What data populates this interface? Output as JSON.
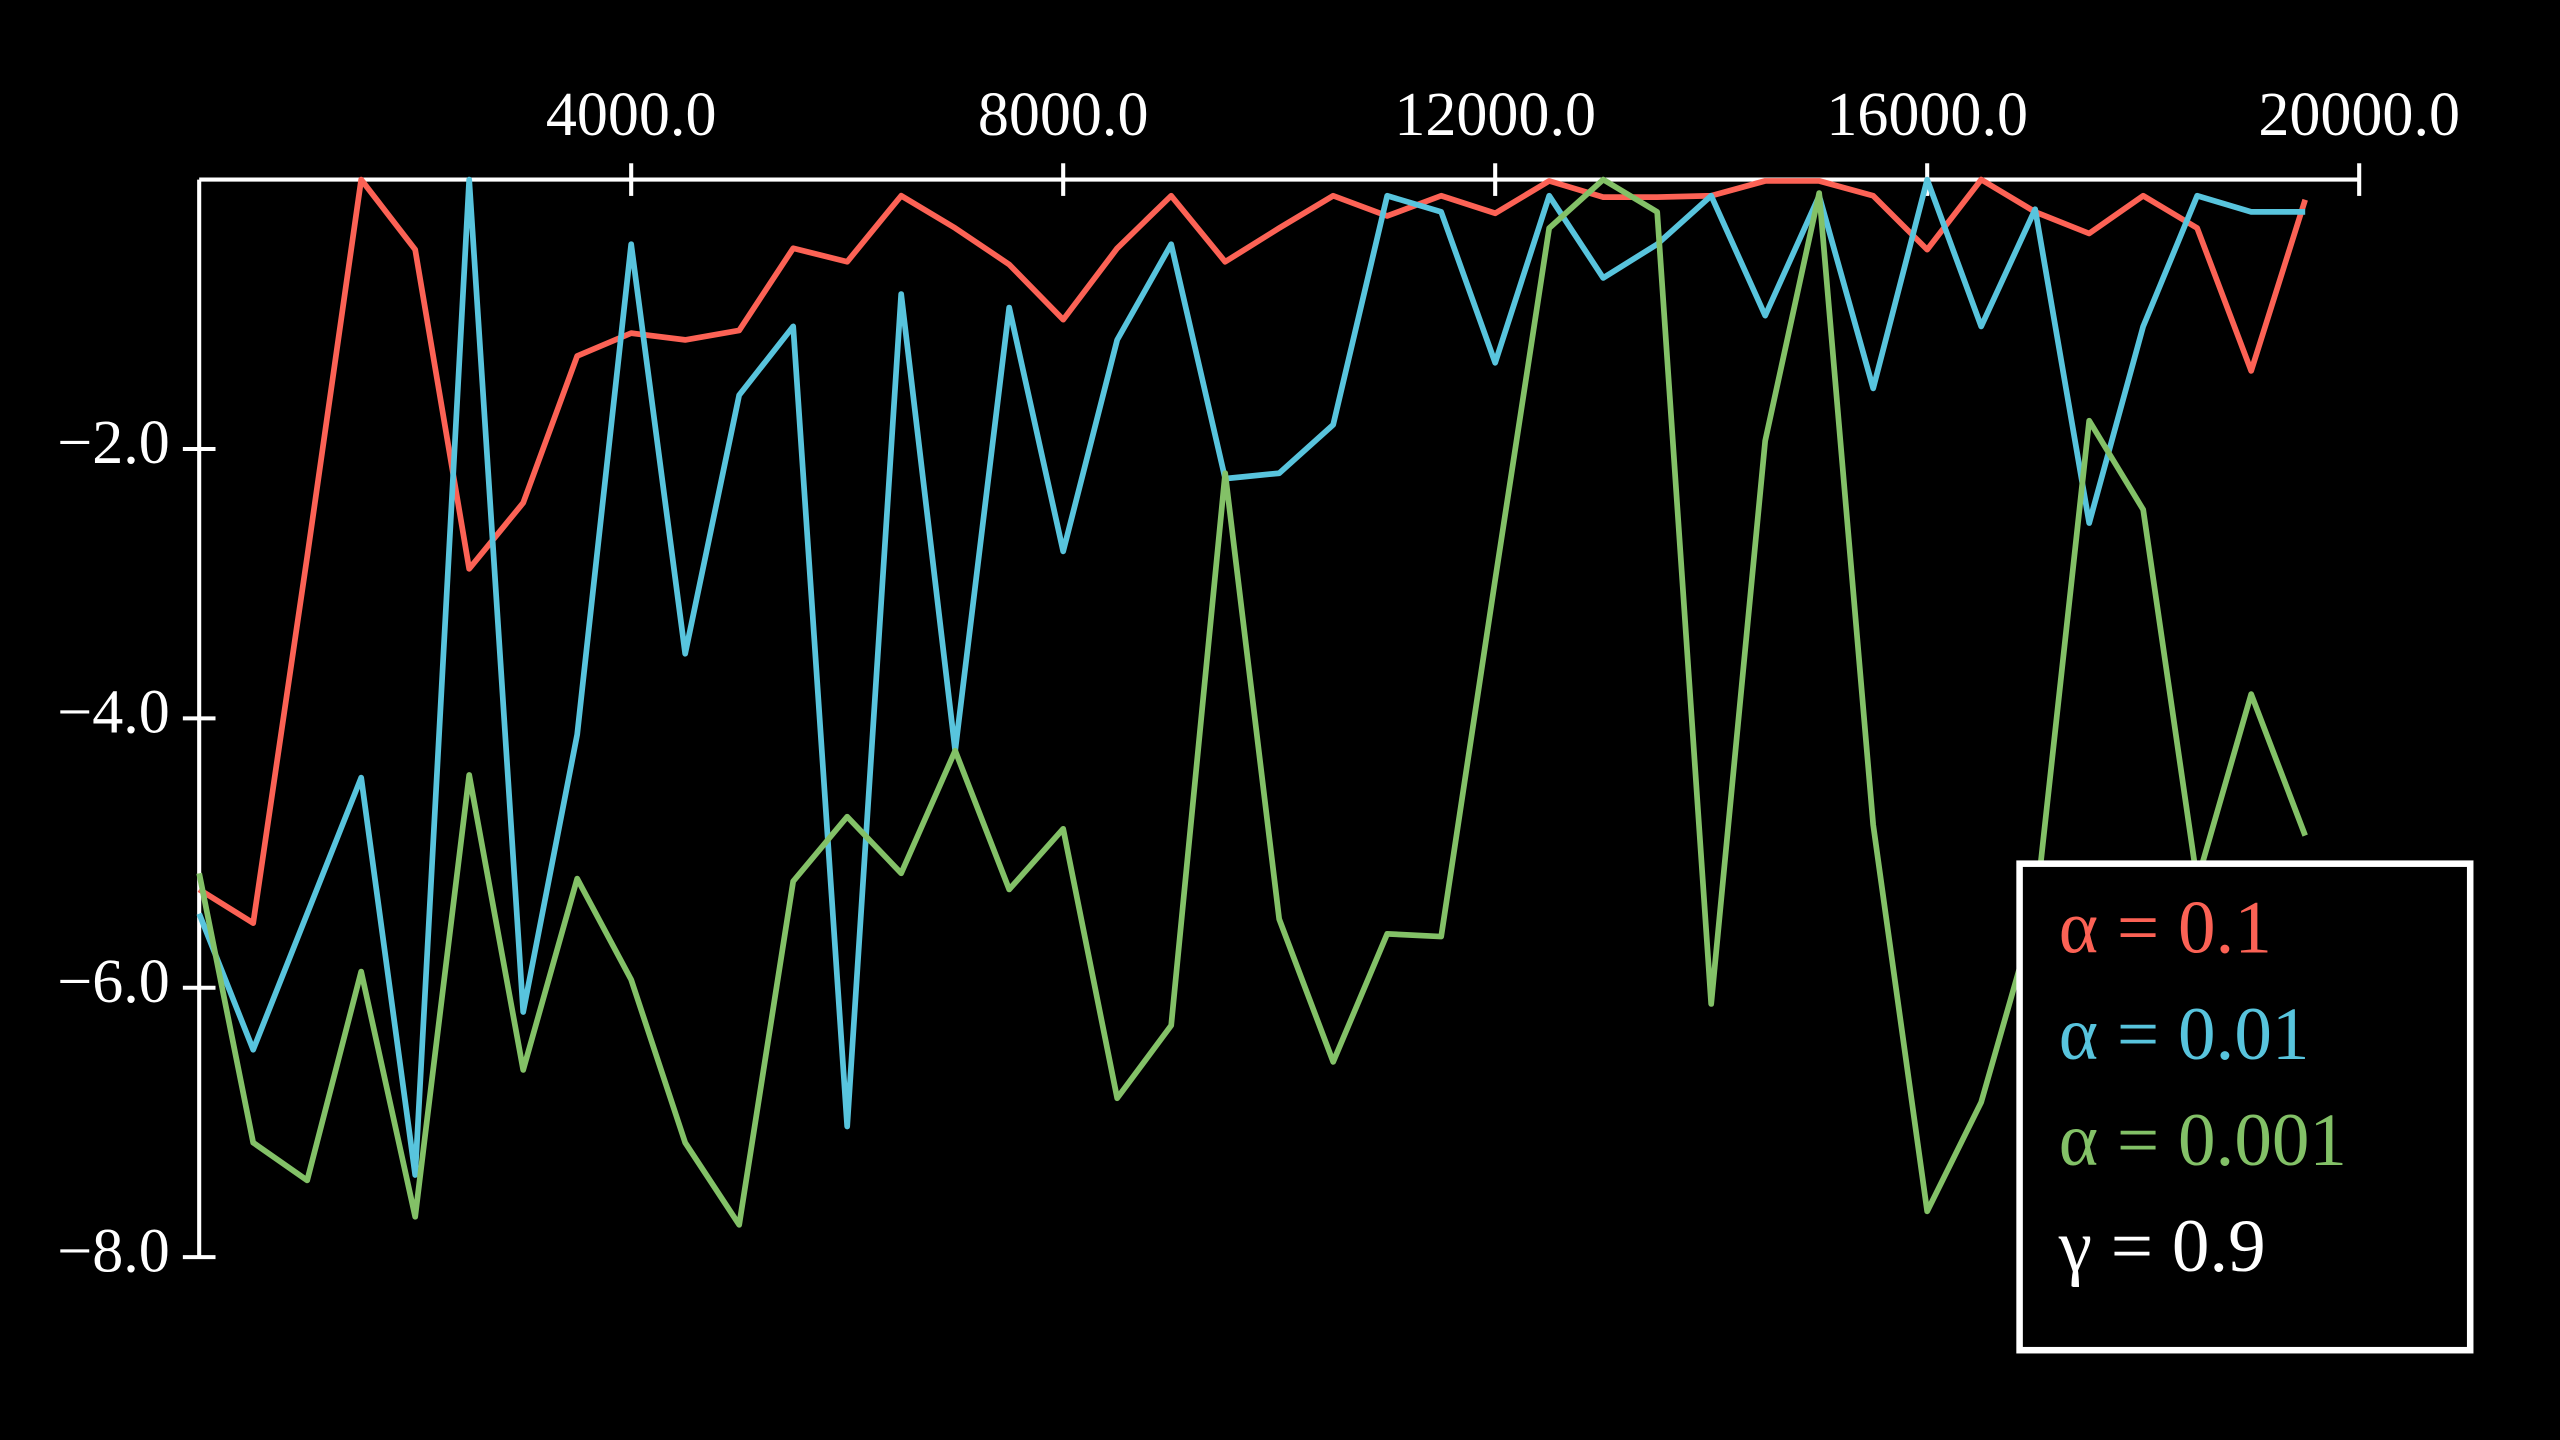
{
  "chart_data": {
    "type": "line",
    "x": [
      0,
      500,
      1000,
      1500,
      2000,
      2500,
      3000,
      3500,
      4000,
      4500,
      5000,
      5500,
      6000,
      6500,
      7000,
      7500,
      8000,
      8500,
      9000,
      9500,
      10000,
      10500,
      11000,
      11500,
      12000,
      12500,
      13000,
      13500,
      14000,
      14500,
      15000,
      15500,
      16000,
      16500,
      17000,
      17500,
      18000,
      18500,
      19000,
      19500
    ],
    "series": [
      {
        "name": "α = 0.1",
        "color": "#fc6255",
        "values": [
          -5.27,
          -5.52,
          -2.8,
          0,
          -0.52,
          -2.89,
          -2.4,
          -1.31,
          -1.14,
          -1.19,
          -1.12,
          -0.51,
          -0.61,
          -0.12,
          -0.36,
          -0.63,
          -1.04,
          -0.51,
          -0.12,
          -0.61,
          -0.36,
          -0.12,
          -0.27,
          -0.12,
          -0.25,
          -0.01,
          -0.13,
          -0.13,
          -0.12,
          -0.01,
          -0.01,
          -0.12,
          -0.52,
          0,
          -0.24,
          -0.4,
          -0.12,
          -0.36,
          -1.42,
          -0.15
        ]
      },
      {
        "name": "α = 0.01",
        "color": "#58c4dd",
        "values": [
          -5.45,
          -6.46,
          -5.45,
          -4.44,
          -7.39,
          0,
          -6.18,
          -4.12,
          -0.48,
          -3.52,
          -1.6,
          -1.09,
          -7.03,
          -0.85,
          -4.24,
          -0.95,
          -2.76,
          -1.19,
          -0.48,
          -2.22,
          -2.18,
          -1.82,
          -0.12,
          -0.24,
          -1.36,
          -0.12,
          -0.73,
          -0.48,
          -0.12,
          -1.01,
          -0.12,
          -1.55,
          0,
          -1.09,
          -0.22,
          -2.55,
          -1.09,
          -0.12,
          -0.24,
          -0.24
        ]
      },
      {
        "name": "α = 0.001",
        "color": "#83c167",
        "values": [
          -5.15,
          -7.15,
          -7.43,
          -5.88,
          -7.7,
          -4.42,
          -6.61,
          -5.19,
          -5.94,
          -7.15,
          -7.76,
          -5.21,
          -4.73,
          -5.15,
          -4.24,
          -5.27,
          -4.82,
          -6.82,
          -6.28,
          -2.18,
          -5.49,
          -6.55,
          -5.6,
          -5.62,
          -2.97,
          -0.36,
          0,
          -0.24,
          -6.12,
          -1.94,
          -0.1,
          -4.79,
          -7.66,
          -6.85,
          -5.45,
          -1.79,
          -2.45,
          -5.21,
          -3.82,
          -4.87
        ]
      }
    ],
    "legend_note": "γ = 0.9",
    "xlim": [
      0,
      20000
    ],
    "xticks": [
      {
        "value": 4000,
        "label": "4000.0"
      },
      {
        "value": 8000,
        "label": "8000.0"
      },
      {
        "value": 12000,
        "label": "12000.0"
      },
      {
        "value": 16000,
        "label": "16000.0"
      },
      {
        "value": 20000,
        "label": "20000.0"
      }
    ],
    "ylim": [
      -8,
      0
    ],
    "yticks": [
      {
        "value": -2,
        "label": "−2.0"
      },
      {
        "value": -4,
        "label": "−4.0"
      },
      {
        "value": -6,
        "label": "−6.0"
      },
      {
        "value": -8,
        "label": "−8.0"
      }
    ],
    "legend": "lower right",
    "axis_color": "#ffffff"
  }
}
